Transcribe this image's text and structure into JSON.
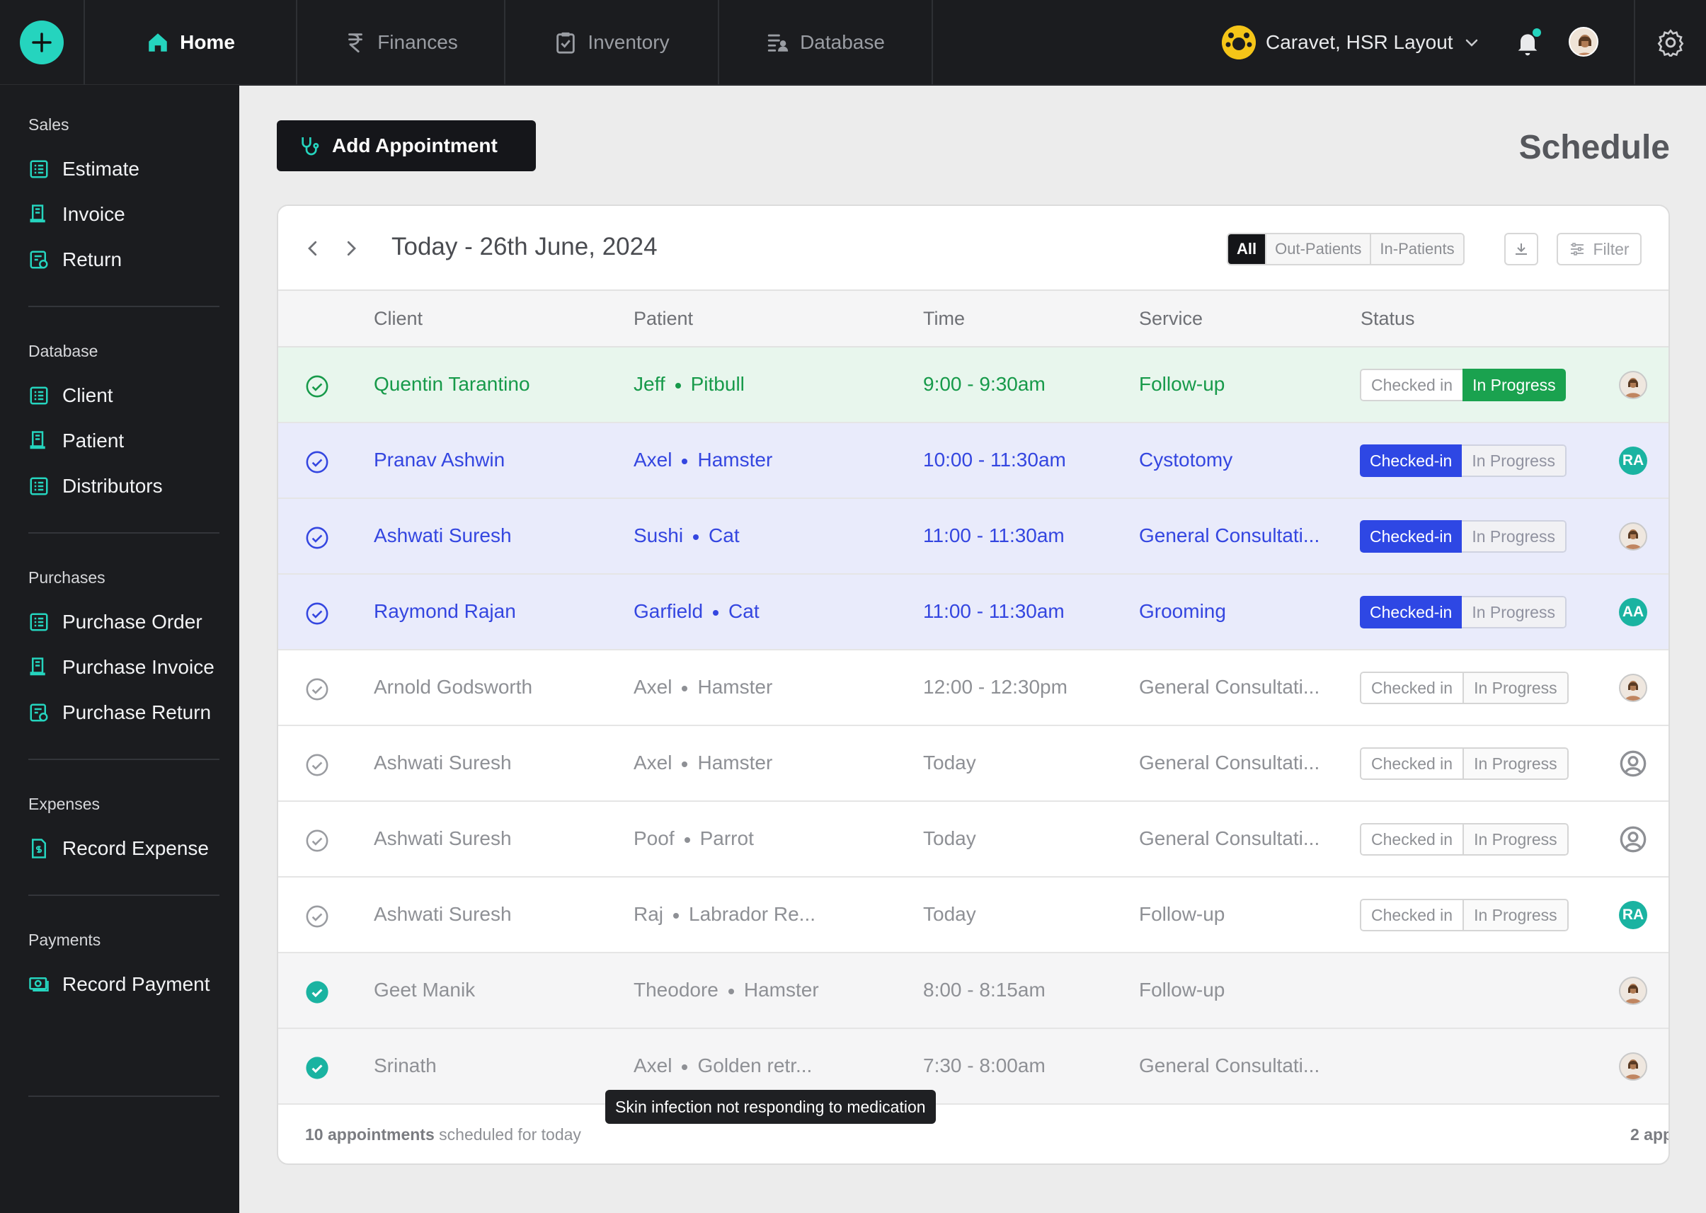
{
  "topbar": {
    "tabs": [
      {
        "label": "Home",
        "icon": "home-icon",
        "active": true
      },
      {
        "label": "Finances",
        "icon": "rupee-icon"
      },
      {
        "label": "Inventory",
        "icon": "clipboard-check-icon"
      },
      {
        "label": "Database",
        "icon": "database-list-icon"
      }
    ],
    "location": "Caravet, HSR Layout"
  },
  "sidebar": {
    "sections": [
      {
        "heading": "Sales",
        "items": [
          "Estimate",
          "Invoice",
          "Return"
        ]
      },
      {
        "heading": "Database",
        "items": [
          "Client",
          "Patient",
          "Distributors"
        ]
      },
      {
        "heading": "Purchases",
        "items": [
          "Purchase Order",
          "Purchase Invoice",
          "Purchase Return"
        ]
      },
      {
        "heading": "Expenses",
        "items": [
          "Record Expense"
        ]
      },
      {
        "heading": "Payments",
        "items": [
          "Record Payment"
        ]
      }
    ]
  },
  "main": {
    "add_button": "Add Appointment",
    "title": "Schedule",
    "date_title": "Today - 26th June, 2024",
    "segments": [
      "All",
      "Out-Patients",
      "In-Patients"
    ],
    "filter_label": "Filter",
    "columns": [
      "Client",
      "Patient",
      "Time",
      "Service",
      "Status"
    ],
    "rows": [
      {
        "client": "Quentin Tarantino",
        "pet": "Jeff",
        "species": "Pitbull",
        "time": "9:00 - 9:30am",
        "service": "Follow-up",
        "status_a": "Checked in",
        "status_b": "In Progress"
      },
      {
        "client": "Pranav Ashwin",
        "pet": "Axel",
        "species": "Hamster",
        "time": "10:00 - 11:30am",
        "service": "Cystotomy",
        "status_a": "Checked-in",
        "status_b": "In Progress",
        "initials": "RA"
      },
      {
        "client": "Ashwati Suresh",
        "pet": "Sushi",
        "species": "Cat",
        "time": "11:00 - 11:30am",
        "service": "General Consultati...",
        "status_a": "Checked-in",
        "status_b": "In Progress"
      },
      {
        "client": "Raymond Rajan",
        "pet": "Garfield",
        "species": "Cat",
        "time": "11:00 - 11:30am",
        "service": "Grooming",
        "status_a": "Checked-in",
        "status_b": "In Progress",
        "initials": "AA"
      },
      {
        "client": "Arnold Godsworth",
        "pet": "Axel",
        "species": "Hamster",
        "time": "12:00 - 12:30pm",
        "service": "General Consultati...",
        "status_a": "Checked in",
        "status_b": "In Progress"
      },
      {
        "client": "Ashwati Suresh",
        "pet": "Axel",
        "species": "Hamster",
        "time": "Today",
        "service": "General Consultati...",
        "status_a": "Checked in",
        "status_b": "In Progress"
      },
      {
        "client": "Ashwati Suresh",
        "pet": "Poof",
        "species": "Parrot",
        "time": "Today",
        "service": "General Consultati...",
        "status_a": "Checked in",
        "status_b": "In Progress"
      },
      {
        "client": "Ashwati Suresh",
        "pet": "Raj",
        "species": "Labrador Re...",
        "time": "Today",
        "service": "Follow-up",
        "status_a": "Checked in",
        "status_b": "In Progress",
        "initials": "RA"
      },
      {
        "client": "Geet Manik",
        "pet": "Theodore",
        "species": "Hamster",
        "time": "8:00 - 8:15am",
        "service": "Follow-up"
      },
      {
        "client": "Srinath",
        "pet": "Axel",
        "species": "Golden retr...",
        "time": "7:30 - 8:00am",
        "service": "General Consultati..."
      }
    ],
    "footer": {
      "count": "10 appointments",
      "rest": " scheduled for today",
      "right": "2 app"
    },
    "tooltip": "Skin infection not responding to medication"
  },
  "colors": {
    "accent": "#25d4be",
    "progress_green": "#1aa24f",
    "checked_blue": "#2e47e4"
  }
}
